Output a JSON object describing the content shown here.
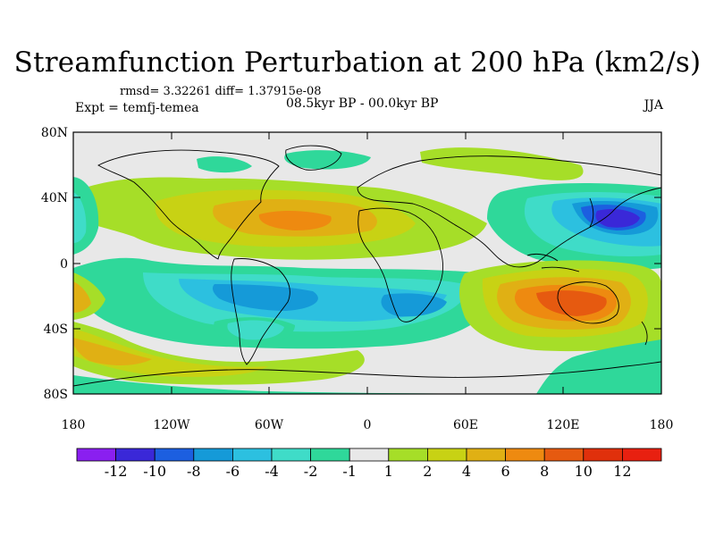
{
  "title": "Streamfunction Perturbation at 200 hPa (km2/s)",
  "stats": "rmsd= 3.32261 diff= 1.37915e-08",
  "experiment": "Expt = temfj-temea",
  "period": "08.5kyr BP - 00.0kyr BP",
  "season": "JJA",
  "lat_ticks": [
    "80N",
    "40N",
    "0",
    "40S",
    "80S"
  ],
  "lon_ticks": [
    "180",
    "120W",
    "60W",
    "0",
    "60E",
    "120E",
    "180"
  ],
  "colorbar": {
    "labels": [
      "-12",
      "-10",
      "-8",
      "-6",
      "-4",
      "-2",
      "-1",
      "1",
      "2",
      "4",
      "6",
      "8",
      "10",
      "12"
    ],
    "colors": [
      "#8a1ff0",
      "#3a28d8",
      "#1c5fe0",
      "#159ad8",
      "#2cc0e0",
      "#3fdcc8",
      "#2fd89a",
      "#e8e8e8",
      "#a6de28",
      "#c8d214",
      "#e0b014",
      "#ee8a10",
      "#e65a10",
      "#e0300c",
      "#e82010"
    ]
  }
}
